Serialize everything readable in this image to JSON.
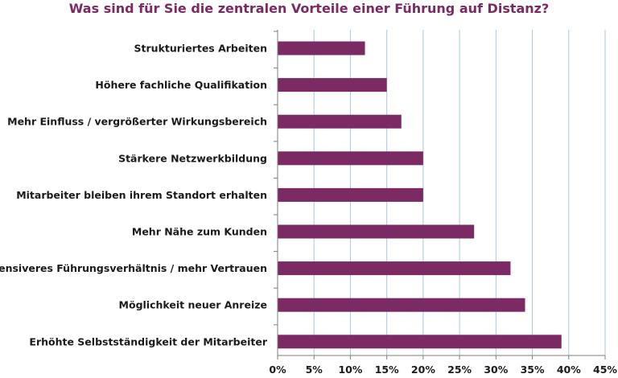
{
  "chart_data": {
    "type": "bar",
    "orientation": "horizontal",
    "title": "Was sind für Sie die zentralen Vorteile einer Führung auf Distanz?",
    "categories": [
      "Strukturiertes Arbeiten",
      "Höhere fachliche Qualifikation",
      "Mehr Einfluss / vergrößerter Wirkungsbereich",
      "Stärkere Netzwerkbildung",
      "Mitarbeiter bleiben ihrem Standort erhalten",
      "Mehr Nähe zum Kunden",
      "Intensiveres Führungsverhältnis / mehr Vertrauen",
      "Möglichkeit neuer Anreize",
      "Erhöhte Selbstständigkeit der Mitarbeiter"
    ],
    "values": [
      12,
      15,
      17,
      20,
      20,
      27,
      32,
      34,
      39
    ],
    "xlim": [
      0,
      45
    ],
    "x_ticks": [
      "0%",
      "5%",
      "10%",
      "15%",
      "20%",
      "25%",
      "30%",
      "35%",
      "40%",
      "45%"
    ],
    "x_tick_values": [
      0,
      5,
      10,
      15,
      20,
      25,
      30,
      35,
      40,
      45
    ],
    "grid": true,
    "legend": "none",
    "bar_color": "#7b2a63",
    "grid_color": "#a9c8dd",
    "axis_color": "#7f7f7f",
    "title_color": "#7b2a63"
  }
}
